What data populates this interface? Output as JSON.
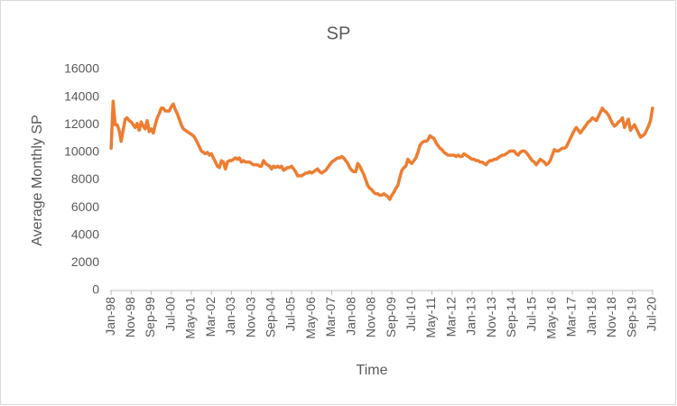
{
  "chart_data": {
    "type": "line",
    "title": "SP",
    "x_label": "Time",
    "y_label": "Average Monthly SP",
    "categories": [
      "Jan-98",
      null,
      null,
      null,
      null,
      null,
      null,
      null,
      null,
      null,
      "Nov-98",
      null,
      null,
      null,
      null,
      null,
      null,
      null,
      null,
      null,
      "Sep-99",
      null,
      null,
      null,
      null,
      null,
      null,
      null,
      null,
      null,
      "Jul-00",
      null,
      null,
      null,
      null,
      null,
      null,
      null,
      null,
      null,
      "May-01",
      null,
      null,
      null,
      null,
      null,
      null,
      null,
      null,
      null,
      "Mar-02",
      null,
      null,
      null,
      null,
      null,
      null,
      null,
      null,
      null,
      "Jan-03",
      null,
      null,
      null,
      null,
      null,
      null,
      null,
      null,
      null,
      "Nov-03",
      null,
      null,
      null,
      null,
      null,
      null,
      null,
      null,
      null,
      "Sep-04",
      null,
      null,
      null,
      null,
      null,
      null,
      null,
      null,
      null,
      "Jul-05",
      null,
      null,
      null,
      null,
      null,
      null,
      null,
      null,
      null,
      "May-06",
      null,
      null,
      null,
      null,
      null,
      null,
      null,
      null,
      null,
      "Mar-07",
      null,
      null,
      null,
      null,
      null,
      null,
      null,
      null,
      null,
      "Jan-08",
      null,
      null,
      null,
      null,
      null,
      null,
      null,
      null,
      null,
      "Nov-08",
      null,
      null,
      null,
      null,
      null,
      null,
      null,
      null,
      null,
      "Sep-09",
      null,
      null,
      null,
      null,
      null,
      null,
      null,
      null,
      null,
      "Jul-10",
      null,
      null,
      null,
      null,
      null,
      null,
      null,
      null,
      null,
      "May-11",
      null,
      null,
      null,
      null,
      null,
      null,
      null,
      null,
      null,
      "Mar-12",
      null,
      null,
      null,
      null,
      null,
      null,
      null,
      null,
      null,
      "Jan-13",
      null,
      null,
      null,
      null,
      null,
      null,
      null,
      null,
      null,
      "Nov-13",
      null,
      null,
      null,
      null,
      null,
      null,
      null,
      null,
      null,
      "Sep-14",
      null,
      null,
      null,
      null,
      null,
      null,
      null,
      null,
      null,
      "Jul-15",
      null,
      null,
      null,
      null,
      null,
      null,
      null,
      null,
      null,
      "May-16",
      null,
      null,
      null,
      null,
      null,
      null,
      null,
      null,
      null,
      "Mar-17",
      null,
      null,
      null,
      null,
      null,
      null,
      null,
      null,
      null,
      "Jan-18",
      null,
      null,
      null,
      null,
      null,
      null,
      null,
      null,
      null,
      "Nov-18",
      null,
      null,
      null,
      null,
      null,
      null,
      null,
      null,
      null,
      "Sep-19",
      null,
      null,
      null,
      null,
      null,
      null,
      null,
      null,
      null,
      "Jul-20"
    ],
    "values": [
      10300,
      13700,
      12000,
      12000,
      11600,
      10800,
      11600,
      12400,
      12500,
      12300,
      12200,
      12000,
      11800,
      12100,
      11600,
      12200,
      11900,
      11700,
      12300,
      11500,
      11700,
      11400,
      12000,
      12500,
      12800,
      13200,
      13200,
      13000,
      13000,
      13000,
      13300,
      13500,
      13100,
      12800,
      12400,
      12000,
      11700,
      11600,
      11500,
      11400,
      11300,
      11200,
      11000,
      10700,
      10400,
      10100,
      10000,
      9900,
      10000,
      9800,
      9900,
      9600,
      9300,
      9000,
      8900,
      9400,
      9300,
      8800,
      9300,
      9400,
      9400,
      9500,
      9600,
      9500,
      9600,
      9300,
      9400,
      9300,
      9300,
      9300,
      9200,
      9100,
      9100,
      9100,
      9000,
      9000,
      9400,
      9200,
      9100,
      9000,
      8800,
      9000,
      8900,
      9000,
      8900,
      9000,
      8700,
      8800,
      8900,
      8900,
      9000,
      8800,
      8600,
      8300,
      8300,
      8300,
      8400,
      8500,
      8500,
      8600,
      8500,
      8600,
      8700,
      8800,
      8600,
      8500,
      8600,
      8700,
      8900,
      9100,
      9300,
      9400,
      9500,
      9600,
      9600,
      9700,
      9600,
      9400,
      9200,
      8900,
      8700,
      8600,
      8600,
      9200,
      9000,
      8700,
      8400,
      8000,
      7600,
      7400,
      7300,
      7100,
      7000,
      7000,
      6900,
      6900,
      7000,
      6900,
      6800,
      6600,
      6900,
      7100,
      7400,
      7600,
      8200,
      8700,
      8900,
      9000,
      9500,
      9300,
      9200,
      9400,
      9600,
      10000,
      10500,
      10700,
      10800,
      10800,
      10900,
      11200,
      11100,
      11000,
      10700,
      10500,
      10300,
      10200,
      10000,
      9900,
      9800,
      9800,
      9800,
      9800,
      9700,
      9800,
      9700,
      9700,
      9900,
      9800,
      9700,
      9600,
      9500,
      9500,
      9400,
      9400,
      9300,
      9300,
      9200,
      9100,
      9300,
      9400,
      9400,
      9500,
      9500,
      9600,
      9700,
      9800,
      9800,
      9900,
      10000,
      10100,
      10100,
      10100,
      9900,
      9800,
      10000,
      10100,
      10100,
      10000,
      9800,
      9600,
      9400,
      9300,
      9100,
      9300,
      9500,
      9400,
      9300,
      9100,
      9200,
      9400,
      9800,
      10200,
      10100,
      10100,
      10200,
      10300,
      10300,
      10400,
      10700,
      11000,
      11300,
      11600,
      11800,
      11600,
      11400,
      11600,
      11800,
      12000,
      12200,
      12300,
      12500,
      12400,
      12300,
      12600,
      12900,
      13200,
      13000,
      12900,
      12700,
      12400,
      12100,
      11900,
      12000,
      12200,
      12300,
      12500,
      11800,
      12100,
      12400,
      11600,
      11800,
      12000,
      11700,
      11400,
      11100,
      11200,
      11300,
      11600,
      11900,
      12300,
      13200
    ],
    "color": "#ed7d31",
    "ylim": [
      0,
      16000
    ],
    "yticks": [
      0,
      2000,
      4000,
      6000,
      8000,
      10000,
      12000,
      14000,
      16000
    ],
    "grid": false
  }
}
